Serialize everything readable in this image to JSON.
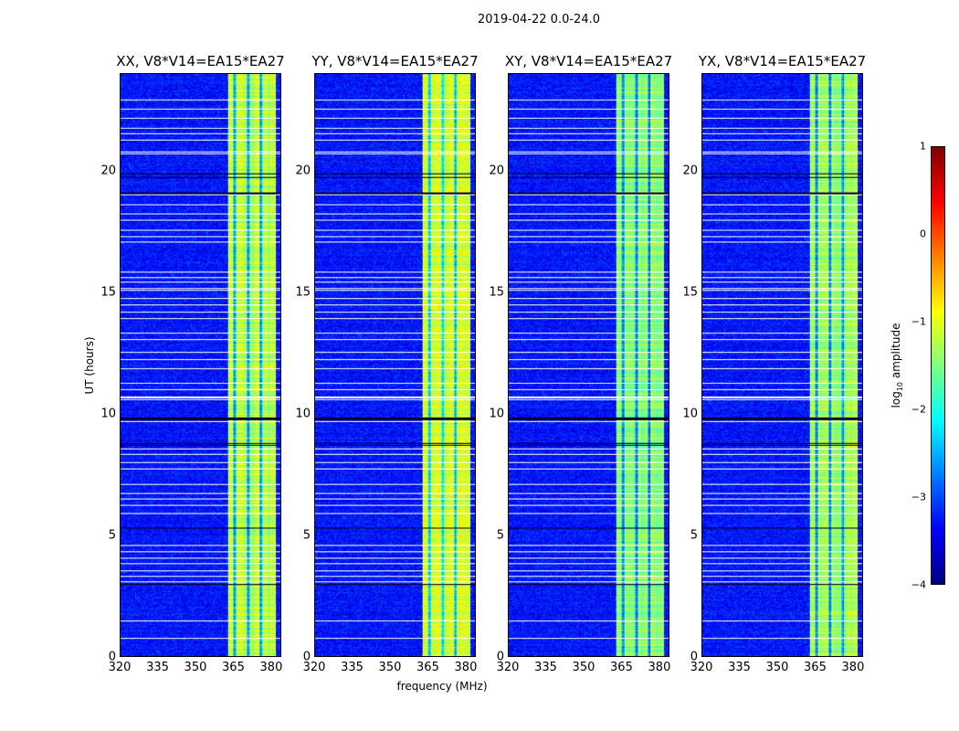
{
  "chart_data": {
    "type": "heatmap",
    "title": "2019-04-22 0.0-24.0",
    "xlabel": "frequency (MHz)",
    "ylabel": "UT (hours)",
    "xlim": [
      320,
      384
    ],
    "ylim": [
      0,
      24
    ],
    "xticks": [
      "320",
      "335",
      "350",
      "365",
      "380"
    ],
    "xtick_values": [
      320,
      335,
      350,
      365,
      380
    ],
    "yticks": [
      "0",
      "5",
      "10",
      "15",
      "20"
    ],
    "ytick_values": [
      0,
      5,
      10,
      15,
      20
    ],
    "panels": [
      {
        "title": "XX, V8*V14=EA15*EA27",
        "band_level": -1.2
      },
      {
        "title": "YY, V8*V14=EA15*EA27",
        "band_level": -1.05
      },
      {
        "title": "XY, V8*V14=EA15*EA27",
        "band_level": -1.45
      },
      {
        "title": "YX, V8*V14=EA15*EA27",
        "band_level": -1.35
      }
    ],
    "background_level": -3.3,
    "rfi_band_mhz": [
      363,
      382
    ],
    "rfi_band_gaps_mhz": [
      365.5,
      371,
      376
    ],
    "flagged_hours": [
      22.94,
      22.57,
      22.19,
      21.78,
      21.55,
      21.29,
      20.8,
      20.74,
      19.04,
      18.63,
      18.25,
      17.99,
      17.57,
      17.31,
      17.09,
      15.85,
      15.62,
      15.43,
      15.17,
      15.1,
      14.76,
      14.49,
      14.19,
      13.93,
      13.33,
      13.07,
      12.54,
      12.24,
      11.87,
      11.27,
      11.0,
      10.68,
      10.6,
      9.69,
      8.56,
      8.34,
      8.0,
      7.74,
      7.1,
      6.72,
      6.5,
      6.23,
      5.9,
      4.58,
      4.32,
      4.06,
      3.83,
      3.53,
      3.3,
      3.08,
      1.46,
      0.75
    ],
    "dark_hours": [
      19.9,
      19.75,
      19.1,
      9.82,
      9.76,
      8.78,
      8.72,
      5.3,
      2.97
    ],
    "colorbar": {
      "label": "log10 amplitude",
      "range": [
        -4,
        1
      ],
      "ticks": [
        "1",
        "0",
        "−1",
        "−2",
        "−3",
        "−4"
      ],
      "tick_values": [
        1,
        0,
        -1,
        -2,
        -3,
        -4
      ],
      "colormap": "jet"
    }
  }
}
